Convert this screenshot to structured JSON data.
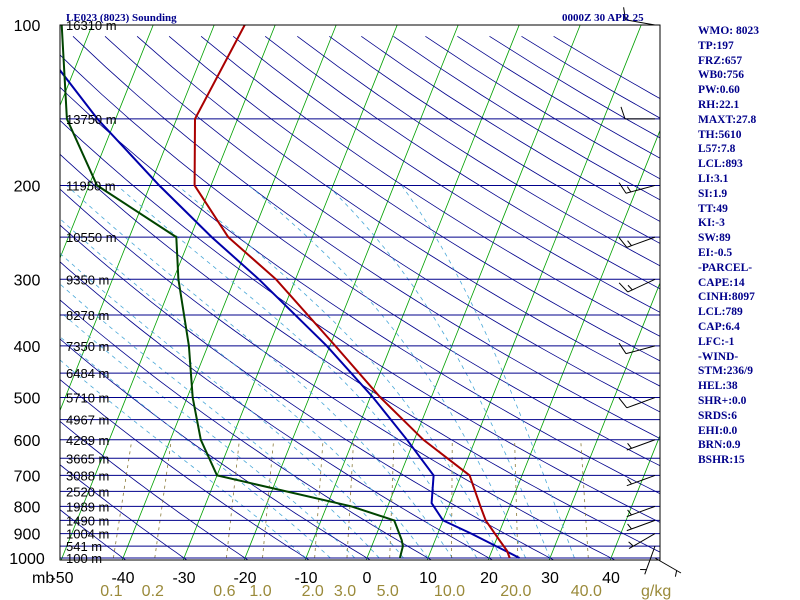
{
  "header": {
    "station": "LE023 (8023) Sounding",
    "time": "0000Z 30 APR 25"
  },
  "colors": {
    "isobar": "#00008b",
    "isotherm": "#00a000",
    "dry_adiabat": "#00008b",
    "moist_adiabat": "#4aa8d8",
    "mixing_ratio": "#8a7a3a",
    "temperature": "#aa0000",
    "dewpoint": "#004400",
    "parcel": "#0000aa",
    "wind": "#000000"
  },
  "chart_data": {
    "type": "skew-t",
    "pressure_range": [
      1000,
      100
    ],
    "pressure_levels": [
      1000,
      900,
      800,
      700,
      600,
      500,
      400,
      300,
      200,
      100
    ],
    "height_labels": [
      {
        "p": 1000,
        "text": "100 m"
      },
      {
        "p": 950,
        "text": "541 m"
      },
      {
        "p": 900,
        "text": "1004 m"
      },
      {
        "p": 850,
        "text": "1490 m"
      },
      {
        "p": 800,
        "text": "1989 m"
      },
      {
        "p": 750,
        "text": "2520 m"
      },
      {
        "p": 700,
        "text": "3088 m"
      },
      {
        "p": 650,
        "text": "3665 m"
      },
      {
        "p": 600,
        "text": "4289 m"
      },
      {
        "p": 550,
        "text": "4967 m"
      },
      {
        "p": 500,
        "text": "5710 m"
      },
      {
        "p": 450,
        "text": "6484 m"
      },
      {
        "p": 400,
        "text": "7350 m"
      },
      {
        "p": 350,
        "text": "8278 m"
      },
      {
        "p": 300,
        "text": "9350 m"
      },
      {
        "p": 250,
        "text": "10550 m"
      },
      {
        "p": 200,
        "text": "11950 m"
      },
      {
        "p": 150,
        "text": "13750 m"
      },
      {
        "p": 100,
        "text": "16310 m"
      }
    ],
    "temperature_ticks": [
      "-50",
      "-40",
      "-30",
      "-20",
      "-10",
      "0",
      "10",
      "20",
      "30",
      "40"
    ],
    "mixing_ratio_labels": [
      "0.1",
      "0.2",
      "0.6",
      "1.0",
      "2.0",
      "3.0",
      "5.0",
      "10.0",
      "20.0",
      "40.0"
    ],
    "mixing_ratio_values": [
      0.1,
      0.2,
      0.6,
      1.0,
      2.0,
      3.0,
      5.0,
      10.0,
      20.0,
      40.0
    ],
    "x_unit": "g/kg",
    "y_unit": "mb",
    "temperature": [
      [
        1000,
        23.4
      ],
      [
        970,
        22.5
      ],
      [
        925,
        20.5
      ],
      [
        850,
        17.0
      ],
      [
        800,
        15.2
      ],
      [
        700,
        11.4
      ],
      [
        600,
        1.5
      ],
      [
        500,
        -8.3
      ],
      [
        400,
        -19.1
      ],
      [
        300,
        -33.2
      ],
      [
        250,
        -43.8
      ],
      [
        200,
        -52.7
      ],
      [
        150,
        -57.0
      ],
      [
        100,
        -55.0
      ]
    ],
    "dewpoint": [
      [
        1000,
        5.4
      ],
      [
        950,
        5.1
      ],
      [
        925,
        4.5
      ],
      [
        850,
        2.0
      ],
      [
        800,
        -6.0
      ],
      [
        700,
        -30.0
      ],
      [
        600,
        -35.0
      ],
      [
        500,
        -39.1
      ],
      [
        400,
        -43.1
      ],
      [
        300,
        -49.2
      ],
      [
        250,
        -52.3
      ],
      [
        200,
        -68.7
      ],
      [
        150,
        -78.0
      ],
      [
        100,
        -85.0
      ]
    ],
    "parcel": [
      [
        1000,
        25.0
      ],
      [
        900,
        15.5
      ],
      [
        850,
        10.0
      ],
      [
        789,
        7.0
      ],
      [
        700,
        5.5
      ],
      [
        600,
        -1.2
      ],
      [
        500,
        -9.5
      ],
      [
        400,
        -20.5
      ],
      [
        300,
        -36.0
      ],
      [
        250,
        -46.5
      ],
      [
        200,
        -58.5
      ],
      [
        150,
        -73.0
      ],
      [
        100,
        -91.0
      ]
    ],
    "wind_barbs": [
      {
        "p": 1000,
        "dir": 120,
        "spd": 5
      },
      {
        "p": 950,
        "dir": 200,
        "spd": 5
      },
      {
        "p": 900,
        "dir": 240,
        "spd": 5
      },
      {
        "p": 850,
        "dir": 250,
        "spd": 5
      },
      {
        "p": 800,
        "dir": 250,
        "spd": 5
      },
      {
        "p": 700,
        "dir": 250,
        "spd": 5
      },
      {
        "p": 600,
        "dir": 250,
        "spd": 5
      },
      {
        "p": 500,
        "dir": 250,
        "spd": 10
      },
      {
        "p": 400,
        "dir": 255,
        "spd": 10
      },
      {
        "p": 300,
        "dir": 245,
        "spd": 15
      },
      {
        "p": 250,
        "dir": 250,
        "spd": 15
      },
      {
        "p": 200,
        "dir": 255,
        "spd": 15
      },
      {
        "p": 150,
        "dir": 270,
        "spd": 10
      },
      {
        "p": 100,
        "dir": 280,
        "spd": 10
      }
    ]
  },
  "indices": [
    "WMO: 8023",
    "TP:197",
    "FRZ:657",
    "WB0:756",
    "PW:0.60",
    "RH:22.1",
    "MAXT:27.8",
    "TH:5610",
    "L57:7.8",
    "LCL:893",
    "LI:3.1",
    "SI:1.9",
    "TT:49",
    "KI:-3",
    "SW:89",
    "EI:-0.5",
    "-PARCEL-",
    "CAPE:14",
    "CINH:8097",
    "LCL:789",
    "CAP:6.4",
    "LFC:-1",
    "-WIND-",
    "STM:236/9",
    "HEL:38",
    "SHR+:0.0",
    "SRDS:6",
    "EHI:0.0",
    "BRN:0.9",
    "BSHR:15"
  ]
}
